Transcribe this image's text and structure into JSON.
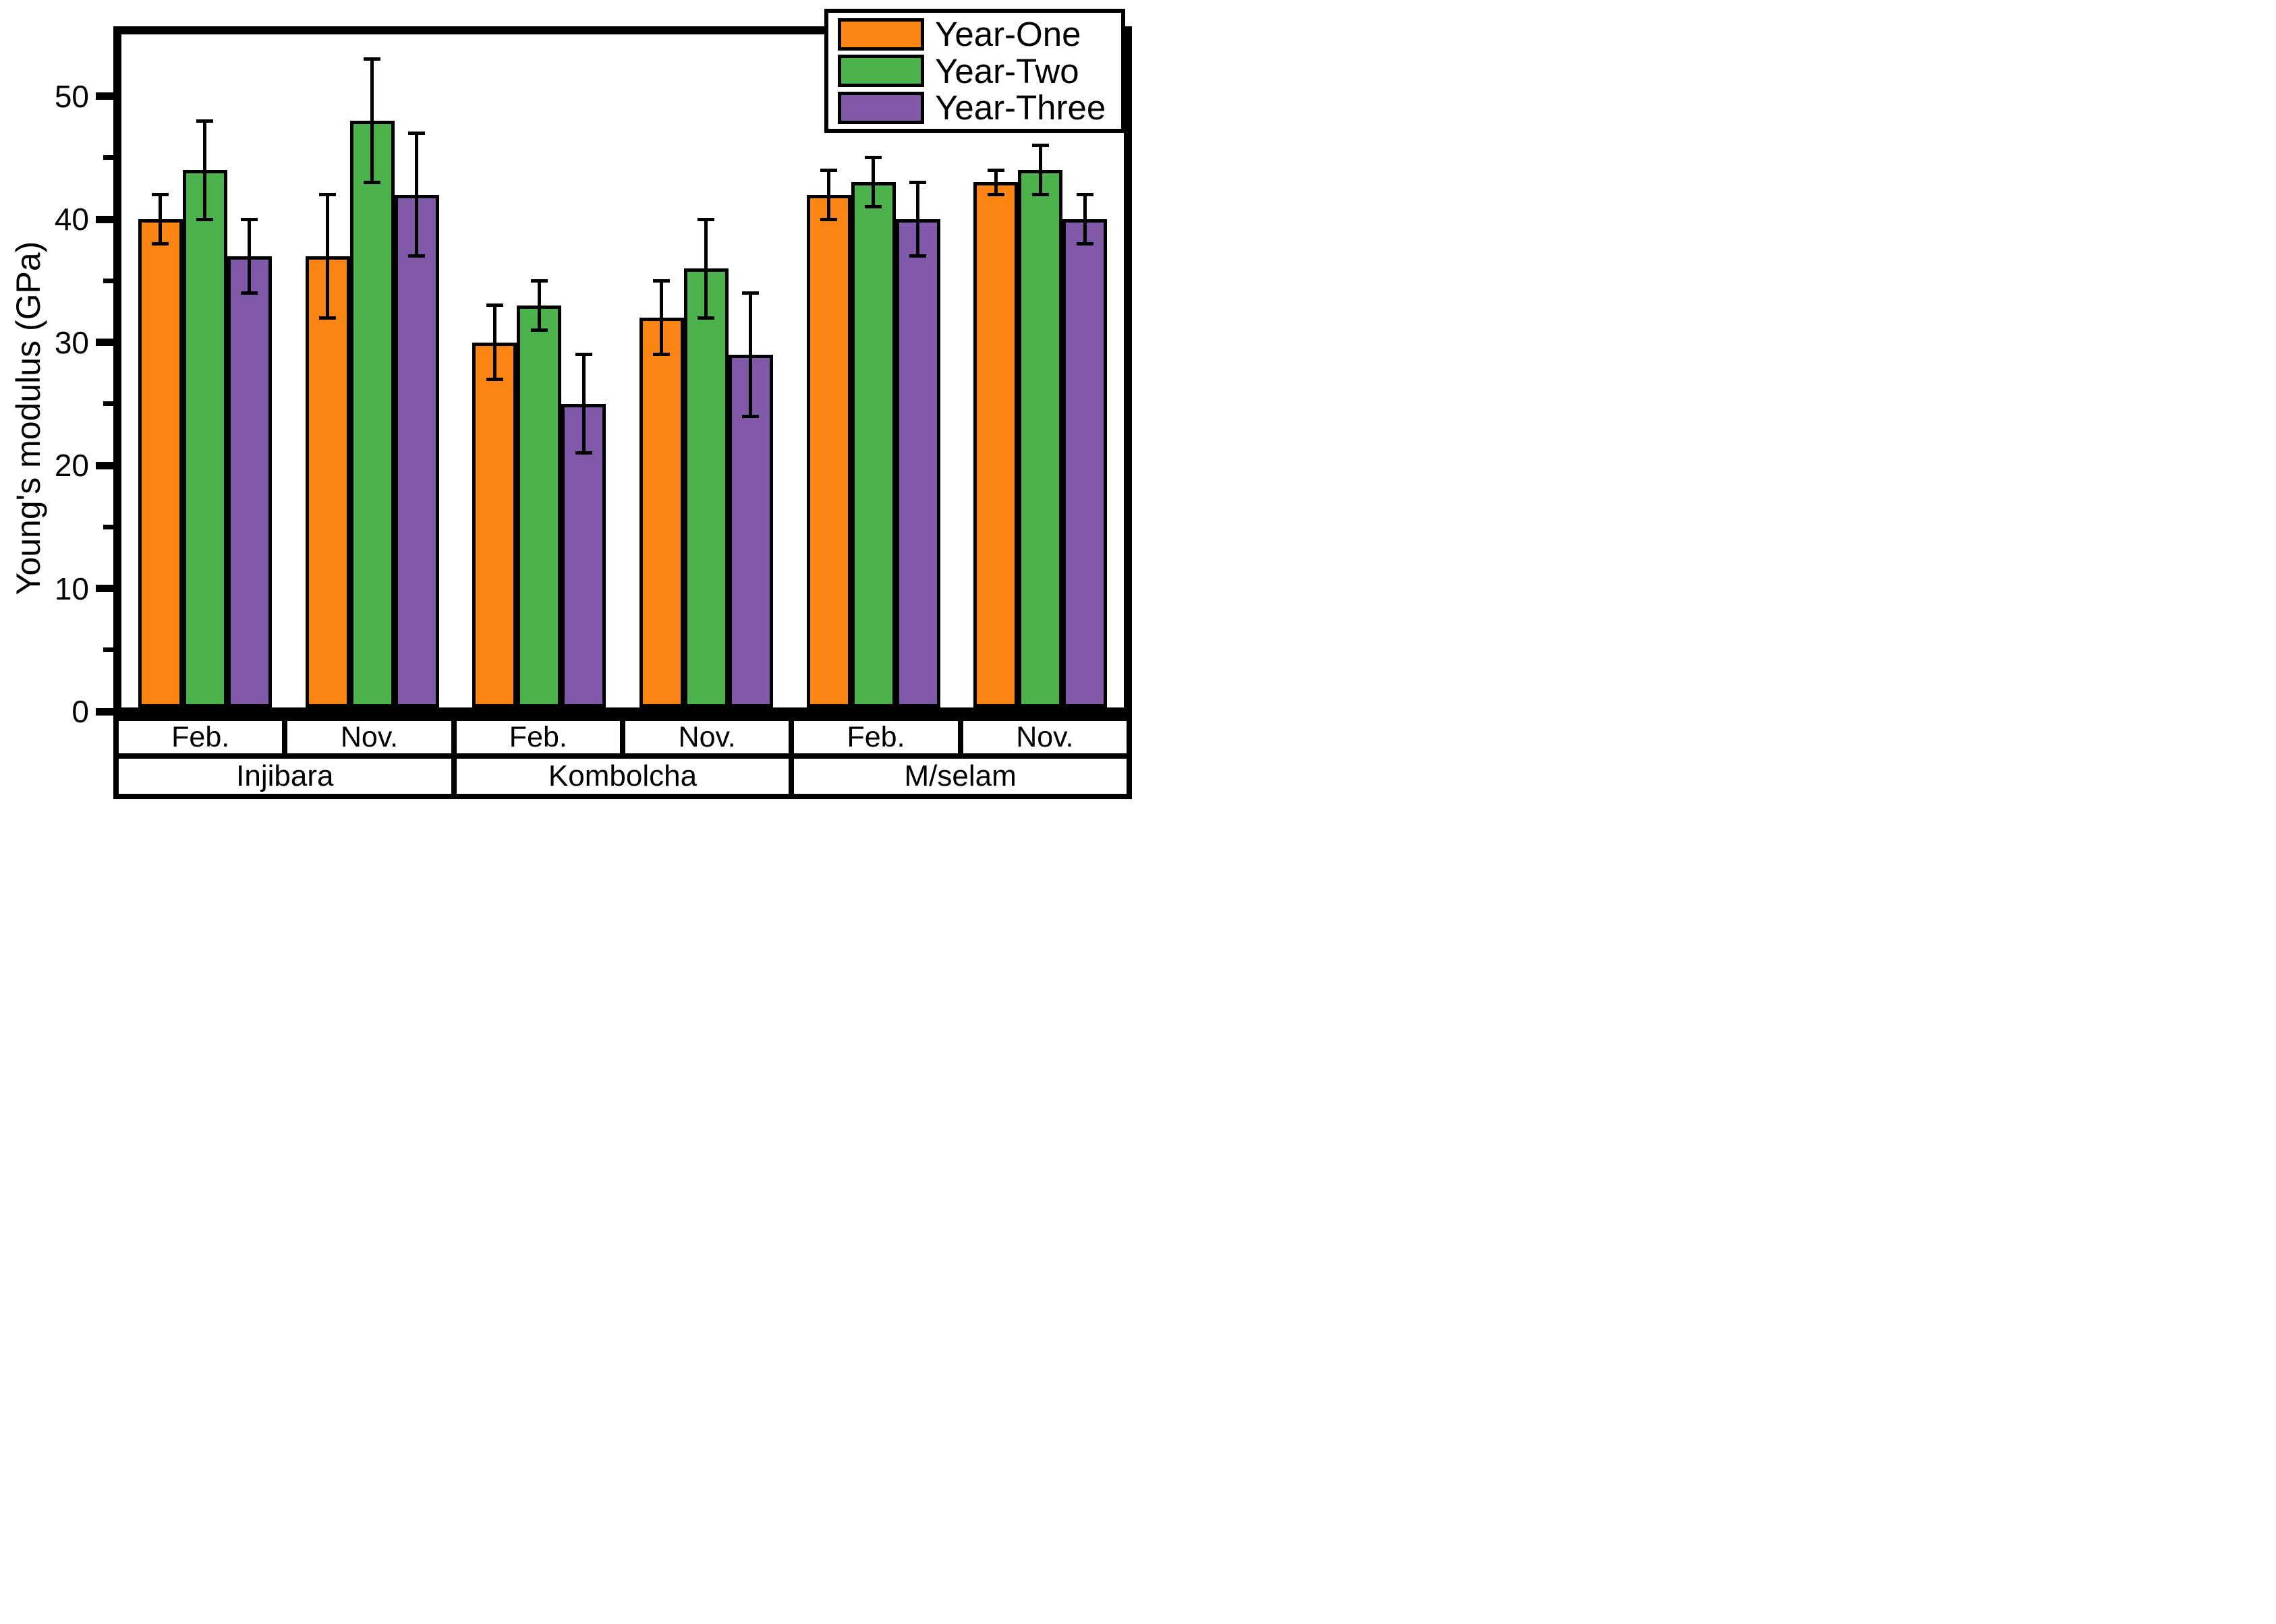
{
  "chart_data": {
    "type": "bar",
    "title": "",
    "ylabel": "Young's modulus (GPa)",
    "xlabel": "",
    "ylim": [
      0,
      54.8
    ],
    "ymajor_ticks": [
      0,
      10,
      20,
      30,
      40,
      50
    ],
    "yminor_ticks": [
      5,
      15,
      25,
      35,
      45
    ],
    "grid": false,
    "legend_position": "top-right-inside",
    "categories_months": [
      "Feb.",
      "Nov.",
      "Feb.",
      "Nov.",
      "Feb.",
      "Nov."
    ],
    "categories_sites": [
      "Injibara",
      "Kombolcha",
      "M/selam"
    ],
    "series": [
      {
        "name": "Year-One",
        "color": "#fb8512",
        "values": [
          40,
          37,
          30,
          32,
          42,
          43
        ],
        "errors": [
          2,
          5,
          3,
          3,
          2,
          1
        ]
      },
      {
        "name": "Year-Two",
        "color": "#4bb24c",
        "values": [
          44,
          48,
          33,
          36,
          43,
          44
        ],
        "errors": [
          4,
          5,
          2,
          4,
          2,
          2
        ]
      },
      {
        "name": "Year-Three",
        "color": "#8059a8",
        "values": [
          37,
          42,
          25,
          29,
          40,
          40
        ],
        "errors": [
          3,
          5,
          4,
          5,
          3,
          2
        ]
      }
    ],
    "bar_outline_color": "#000000",
    "error_bar_color": "#000000",
    "frame_color": "#000000"
  },
  "legend": {
    "items": [
      {
        "label": "Year-One",
        "color": "#fb8512"
      },
      {
        "label": "Year-Two",
        "color": "#4bb24c"
      },
      {
        "label": "Year-Three",
        "color": "#8059a8"
      }
    ]
  }
}
